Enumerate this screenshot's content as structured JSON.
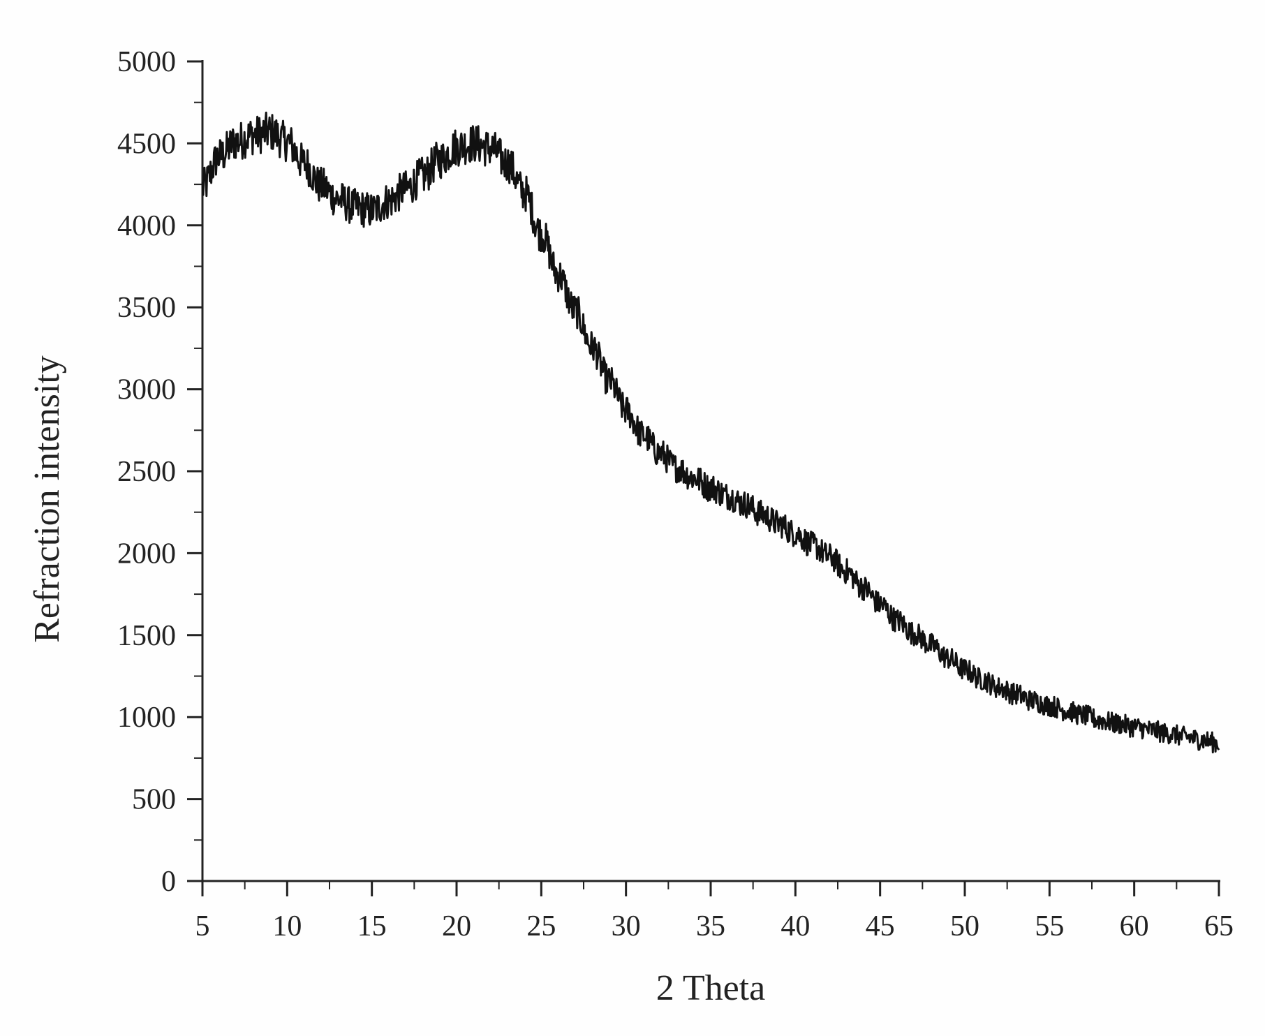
{
  "chart_data": {
    "type": "line",
    "title": "",
    "xlabel": "2 Theta",
    "ylabel": "Refraction intensity",
    "xlim": [
      5,
      65
    ],
    "ylim": [
      0,
      5000
    ],
    "xticks": [
      5,
      10,
      15,
      20,
      25,
      30,
      35,
      40,
      45,
      50,
      55,
      60,
      65
    ],
    "yticks": [
      0,
      500,
      1000,
      1500,
      2000,
      2500,
      3000,
      3500,
      4000,
      4500,
      5000
    ],
    "grid": false,
    "legend": "none",
    "line_color": "#111111",
    "series": [
      {
        "x": [
          5,
          6,
          7,
          8,
          9,
          10,
          11,
          12,
          13,
          14,
          15,
          16,
          17,
          18,
          19,
          20,
          21,
          22,
          23,
          24,
          25,
          26,
          27,
          28,
          29,
          30,
          31,
          32,
          33,
          34,
          35,
          36,
          37,
          38,
          39,
          40,
          41,
          42,
          43,
          44,
          45,
          46,
          47,
          48,
          49,
          50,
          51,
          52,
          53,
          54,
          55,
          56,
          57,
          58,
          59,
          60,
          61,
          62,
          63,
          64,
          65
        ],
        "values": [
          4230,
          4420,
          4510,
          4550,
          4570,
          4510,
          4380,
          4240,
          4160,
          4110,
          4090,
          4150,
          4220,
          4300,
          4400,
          4480,
          4500,
          4470,
          4380,
          4200,
          3950,
          3700,
          3480,
          3260,
          3050,
          2870,
          2720,
          2610,
          2520,
          2460,
          2400,
          2350,
          2300,
          2240,
          2180,
          2120,
          2050,
          1980,
          1890,
          1790,
          1690,
          1590,
          1510,
          1440,
          1360,
          1290,
          1230,
          1180,
          1140,
          1100,
          1070,
          1040,
          1010,
          980,
          960,
          940,
          920,
          900,
          880,
          860,
          840
        ]
      }
    ]
  }
}
